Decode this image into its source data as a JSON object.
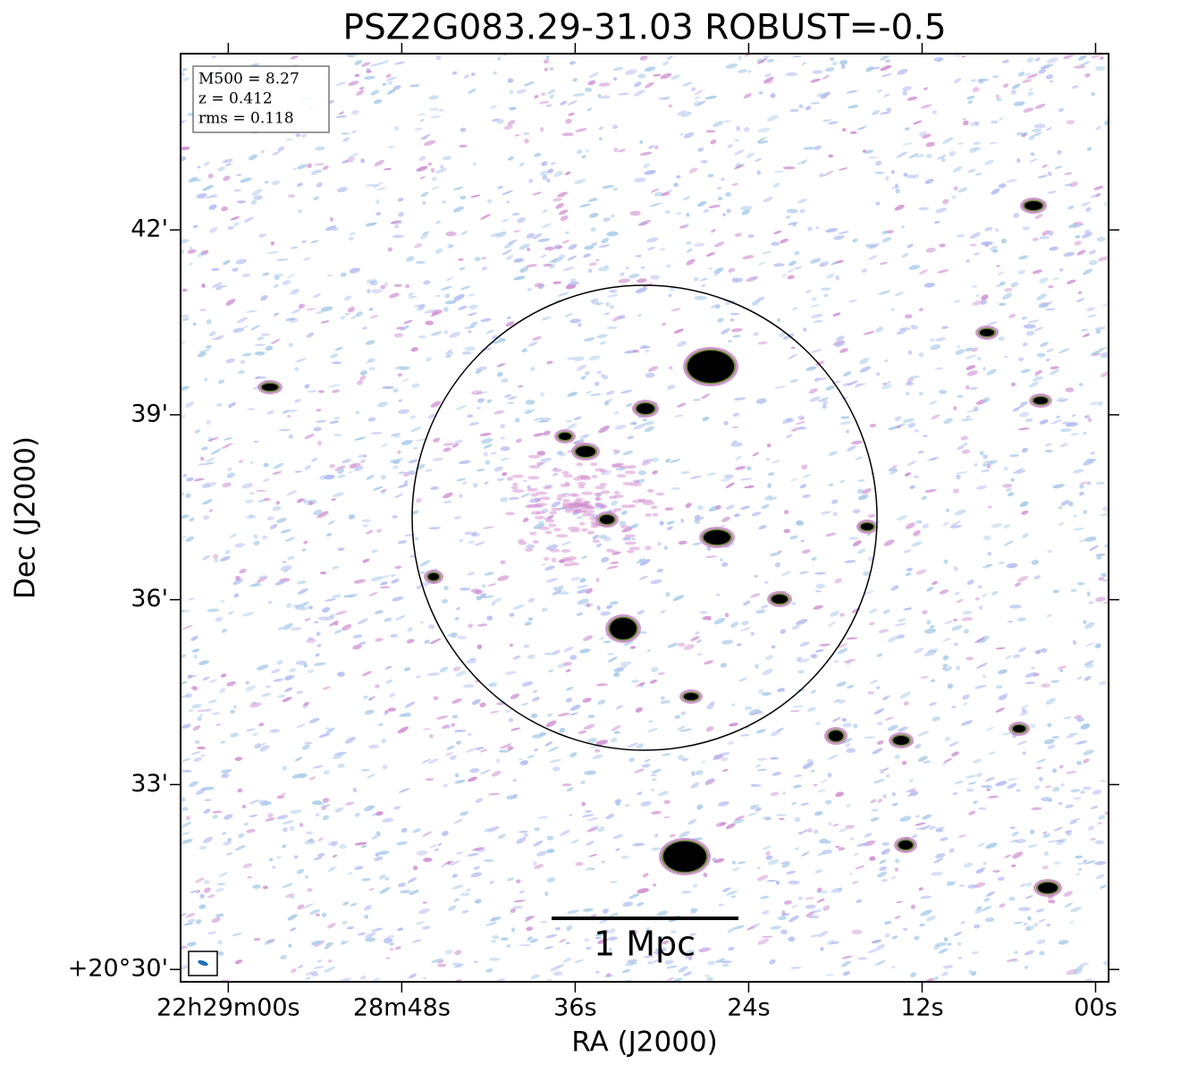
{
  "chart_data": {
    "type": "image",
    "title": "PSZ2G083.29-31.03 ROBUST=-0.5",
    "xlabel": "RA (J2000)",
    "ylabel": "Dec (J2000)",
    "xlim": [
      80943.3,
      80879.1
    ],
    "xticks": [
      {
        "value": 80940,
        "label": "22h29m00s"
      },
      {
        "value": 80928,
        "label": "28m48s"
      },
      {
        "value": 80916,
        "label": "36s"
      },
      {
        "value": 80904,
        "label": "24s"
      },
      {
        "value": 80892,
        "label": "12s"
      },
      {
        "value": 80880,
        "label": "00s"
      }
    ],
    "ylim": [
      29.8,
      44.86
    ],
    "yticks": [
      {
        "value": 30,
        "label": "+20°30'"
      },
      {
        "value": 33,
        "label": "33'"
      },
      {
        "value": 36,
        "label": "36'"
      },
      {
        "value": 39,
        "label": "39'"
      },
      {
        "value": 42,
        "label": "42'"
      }
    ],
    "annotations": [
      "M500 = 8.27",
      "z = 0.412",
      "rms = 0.118"
    ],
    "scalebar_label": "1 Mpc"
  }
}
